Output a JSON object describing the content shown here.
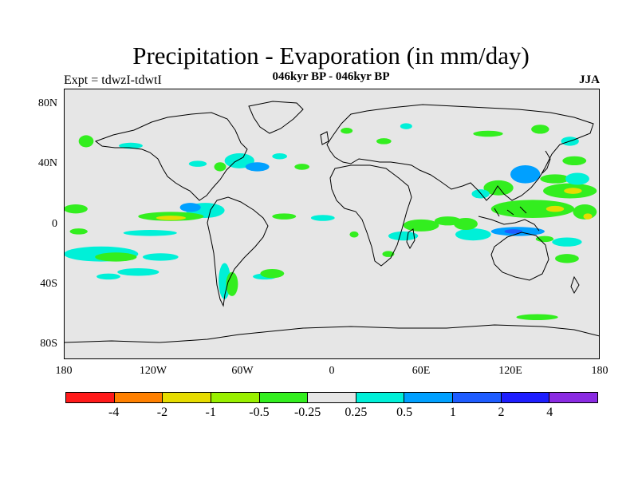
{
  "figure": {
    "title": "Precipitation - Evaporation (in mm/day)",
    "subtitle": "046kyr BP - 046kyr BP",
    "left_label": "Expt = tdwzI-tdwtI",
    "right_label": "JJA"
  },
  "axes": {
    "y_ticks": [
      "80N",
      "40N",
      "0",
      "40S",
      "80S"
    ],
    "x_ticks": [
      "180",
      "120W",
      "60W",
      "0",
      "60E",
      "120E",
      "180"
    ]
  },
  "colorbar": {
    "colors": [
      "#ff1a1a",
      "#ff8000",
      "#e6dc00",
      "#99f000",
      "#33ee1f",
      "#e6e6e6",
      "#00f0d8",
      "#00a0ff",
      "#1e5cff",
      "#1e1eff",
      "#8a2be2"
    ],
    "labels": [
      "-4",
      "-2",
      "-1",
      "-0.5",
      "-0.25",
      "0.25",
      "0.5",
      "1",
      "2",
      "4"
    ]
  },
  "map": {
    "background_color": "#e6e6e6",
    "lat_range": [
      -90,
      90
    ],
    "lon_range": [
      -180,
      180
    ],
    "regions": [
      {
        "kind": "green",
        "lon": 160,
        "lat": 22,
        "rx": 18,
        "ry": 5
      },
      {
        "kind": "yellow",
        "lon": 162,
        "lat": 22,
        "rx": 6,
        "ry": 2
      },
      {
        "kind": "green",
        "lon": 135,
        "lat": 10,
        "rx": 28,
        "ry": 6
      },
      {
        "kind": "yellow",
        "lon": 150,
        "lat": 10,
        "rx": 6,
        "ry": 2
      },
      {
        "kind": "blue",
        "lon": 125,
        "lat": -5,
        "rx": 18,
        "ry": 3
      },
      {
        "kind": "darkblue",
        "lon": 122,
        "lat": -5,
        "rx": 6,
        "ry": 1.5
      },
      {
        "kind": "cyan",
        "lon": 95,
        "lat": -7,
        "rx": 12,
        "ry": 4
      },
      {
        "kind": "green",
        "lon": 90,
        "lat": 0,
        "rx": 8,
        "ry": 4
      },
      {
        "kind": "green",
        "lon": 78,
        "lat": 2,
        "rx": 9,
        "ry": 3
      },
      {
        "kind": "blue",
        "lon": 130,
        "lat": 33,
        "rx": 10,
        "ry": 6
      },
      {
        "kind": "green",
        "lon": 112,
        "lat": 24,
        "rx": 10,
        "ry": 5
      },
      {
        "kind": "cyan",
        "lon": 100,
        "lat": 20,
        "rx": 6,
        "ry": 3
      },
      {
        "kind": "green",
        "lon": 150,
        "lat": 30,
        "rx": 10,
        "ry": 3
      },
      {
        "kind": "green",
        "lon": 163,
        "lat": 42,
        "rx": 8,
        "ry": 3
      },
      {
        "kind": "green",
        "lon": 170,
        "lat": 8,
        "rx": 8,
        "ry": 5
      },
      {
        "kind": "yellow",
        "lon": 172,
        "lat": 5,
        "rx": 3,
        "ry": 2
      },
      {
        "kind": "cyan",
        "lon": 165,
        "lat": 30,
        "rx": 8,
        "ry": 4
      },
      {
        "kind": "cyan",
        "lon": 158,
        "lat": -12,
        "rx": 10,
        "ry": 3
      },
      {
        "kind": "green",
        "lon": 158,
        "lat": -23,
        "rx": 8,
        "ry": 3
      },
      {
        "kind": "green",
        "lon": 143,
        "lat": -10,
        "rx": 6,
        "ry": 2
      },
      {
        "kind": "green",
        "lon": 60,
        "lat": -1,
        "rx": 12,
        "ry": 4
      },
      {
        "kind": "cyan",
        "lon": 48,
        "lat": -8,
        "rx": 10,
        "ry": 3
      },
      {
        "kind": "green",
        "lon": 38,
        "lat": -20,
        "rx": 4,
        "ry": 2
      },
      {
        "kind": "green",
        "lon": 15,
        "lat": -7,
        "rx": 3,
        "ry": 2
      },
      {
        "kind": "cyan",
        "lon": -6,
        "lat": 4,
        "rx": 8,
        "ry": 2
      },
      {
        "kind": "green",
        "lon": -32,
        "lat": 5,
        "rx": 8,
        "ry": 2
      },
      {
        "kind": "cyan",
        "lon": -85,
        "lat": 9,
        "rx": 13,
        "ry": 5
      },
      {
        "kind": "blue",
        "lon": -95,
        "lat": 11,
        "rx": 7,
        "ry": 3
      },
      {
        "kind": "green",
        "lon": -108,
        "lat": 5,
        "rx": 22,
        "ry": 3
      },
      {
        "kind": "yellow",
        "lon": -108,
        "lat": 4,
        "rx": 10,
        "ry": 1.5
      },
      {
        "kind": "cyan",
        "lon": -122,
        "lat": -6,
        "rx": 18,
        "ry": 2
      },
      {
        "kind": "green",
        "lon": -172,
        "lat": 10,
        "rx": 8,
        "ry": 3
      },
      {
        "kind": "cyan",
        "lon": -155,
        "lat": -20,
        "rx": 25,
        "ry": 5
      },
      {
        "kind": "green",
        "lon": -145,
        "lat": -22,
        "rx": 14,
        "ry": 3
      },
      {
        "kind": "cyan",
        "lon": -115,
        "lat": -22,
        "rx": 12,
        "ry": 2.5
      },
      {
        "kind": "cyan",
        "lon": -130,
        "lat": -32,
        "rx": 14,
        "ry": 2.5
      },
      {
        "kind": "cyan",
        "lon": -150,
        "lat": -35,
        "rx": 8,
        "ry": 2
      },
      {
        "kind": "green",
        "lon": -170,
        "lat": -5,
        "rx": 6,
        "ry": 2
      },
      {
        "kind": "cyan",
        "lon": -72,
        "lat": -38,
        "rx": 4,
        "ry": 12
      },
      {
        "kind": "green",
        "lon": -67,
        "lat": -40,
        "rx": 4,
        "ry": 8
      },
      {
        "kind": "cyan",
        "lon": -45,
        "lat": -35,
        "rx": 8,
        "ry": 2
      },
      {
        "kind": "green",
        "lon": -40,
        "lat": -33,
        "rx": 8,
        "ry": 3
      },
      {
        "kind": "cyan",
        "lon": -62,
        "lat": 42,
        "rx": 10,
        "ry": 5
      },
      {
        "kind": "blue",
        "lon": -50,
        "lat": 38,
        "rx": 8,
        "ry": 3
      },
      {
        "kind": "green",
        "lon": -20,
        "lat": 38,
        "rx": 5,
        "ry": 2
      },
      {
        "kind": "cyan",
        "lon": -35,
        "lat": 45,
        "rx": 5,
        "ry": 2
      },
      {
        "kind": "cyan",
        "lon": -135,
        "lat": 52,
        "rx": 8,
        "ry": 2
      },
      {
        "kind": "green",
        "lon": -165,
        "lat": 55,
        "rx": 5,
        "ry": 4
      },
      {
        "kind": "green",
        "lon": 10,
        "lat": 62,
        "rx": 4,
        "ry": 2
      },
      {
        "kind": "green",
        "lon": 35,
        "lat": 55,
        "rx": 5,
        "ry": 2
      },
      {
        "kind": "cyan",
        "lon": 50,
        "lat": 65,
        "rx": 4,
        "ry": 2
      },
      {
        "kind": "green",
        "lon": 105,
        "lat": 60,
        "rx": 10,
        "ry": 2
      },
      {
        "kind": "green",
        "lon": 140,
        "lat": 63,
        "rx": 6,
        "ry": 3
      },
      {
        "kind": "cyan",
        "lon": 160,
        "lat": 55,
        "rx": 6,
        "ry": 3
      },
      {
        "kind": "cyan",
        "lon": -90,
        "lat": 40,
        "rx": 6,
        "ry": 2
      },
      {
        "kind": "green",
        "lon": -75,
        "lat": 38,
        "rx": 4,
        "ry": 3
      },
      {
        "kind": "green",
        "lon": 138,
        "lat": -62,
        "rx": 14,
        "ry": 2
      }
    ]
  }
}
